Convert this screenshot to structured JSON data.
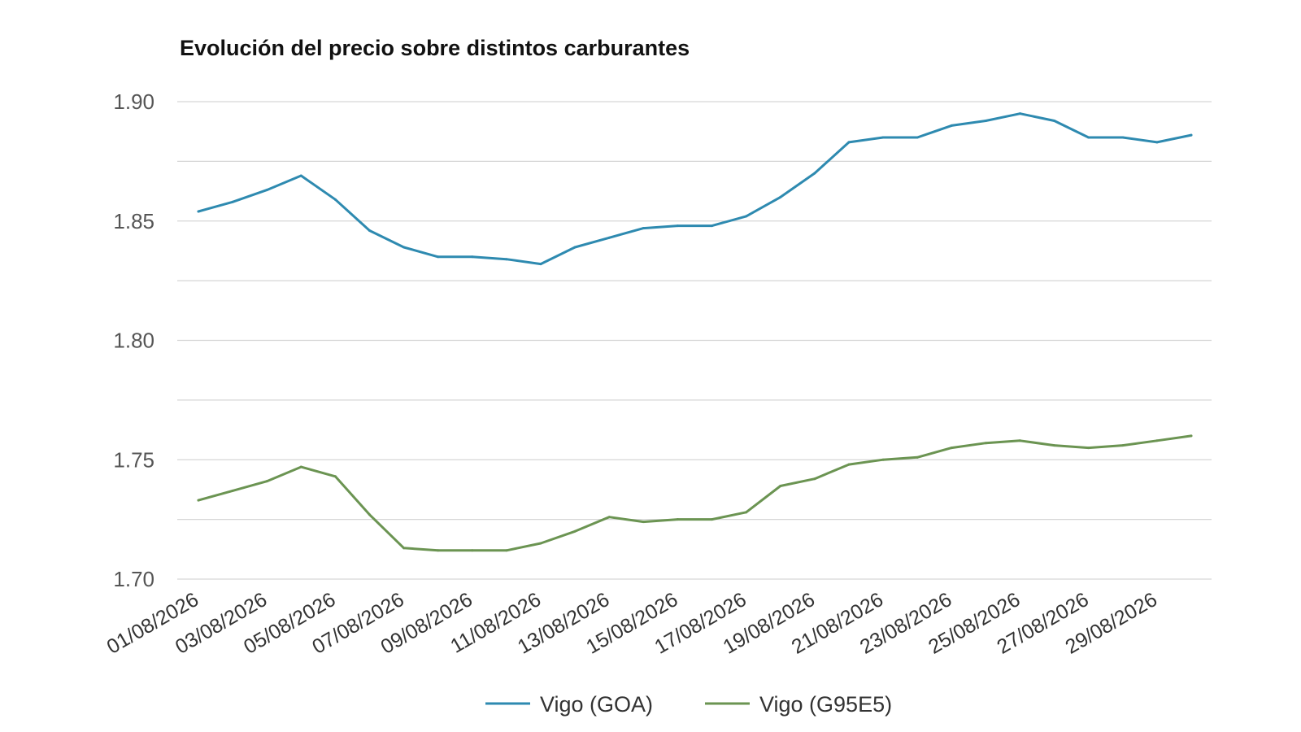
{
  "chart_data": {
    "type": "line",
    "title": "Evolución del precio sobre distintos carburantes",
    "xlabel": "",
    "ylabel": "",
    "x": [
      "01/08/2026",
      "02/08/2026",
      "03/08/2026",
      "04/08/2026",
      "05/08/2026",
      "06/08/2026",
      "07/08/2026",
      "08/08/2026",
      "09/08/2026",
      "10/08/2026",
      "11/08/2026",
      "12/08/2026",
      "13/08/2026",
      "14/08/2026",
      "15/08/2026",
      "16/08/2026",
      "17/08/2026",
      "18/08/2026",
      "19/08/2026",
      "20/08/2026",
      "21/08/2026",
      "22/08/2026",
      "23/08/2026",
      "24/08/2026",
      "25/08/2026",
      "26/08/2026",
      "27/08/2026",
      "28/08/2026",
      "29/08/2026",
      "30/08/2026"
    ],
    "x_tick_labels": [
      "01/08/2026",
      "03/08/2026",
      "05/08/2026",
      "07/08/2026",
      "09/08/2026",
      "11/08/2026",
      "13/08/2026",
      "15/08/2026",
      "17/08/2026",
      "19/08/2026",
      "21/08/2026",
      "23/08/2026",
      "25/08/2026",
      "27/08/2026",
      "29/08/2026"
    ],
    "y_tick_labels": [
      "1.70",
      "1.75",
      "1.80",
      "1.85",
      "1.90"
    ],
    "y_ticks": [
      1.7,
      1.75,
      1.8,
      1.85,
      1.9
    ],
    "ylim": [
      1.7,
      1.9
    ],
    "grid": true,
    "legend_position": "bottom",
    "series": [
      {
        "name": "Vigo (GOA)",
        "color": "#2e8ab0",
        "values": [
          1.854,
          1.858,
          1.863,
          1.869,
          1.859,
          1.846,
          1.839,
          1.835,
          1.835,
          1.834,
          1.832,
          1.839,
          1.843,
          1.847,
          1.848,
          1.848,
          1.852,
          1.86,
          1.87,
          1.883,
          1.885,
          1.885,
          1.89,
          1.892,
          1.895,
          1.892,
          1.885,
          1.885,
          1.883,
          1.886
        ]
      },
      {
        "name": "Vigo (G95E5)",
        "color": "#6b9452",
        "values": [
          1.733,
          1.737,
          1.741,
          1.747,
          1.743,
          1.727,
          1.713,
          1.712,
          1.712,
          1.712,
          1.715,
          1.72,
          1.726,
          1.724,
          1.725,
          1.725,
          1.728,
          1.739,
          1.742,
          1.748,
          1.75,
          1.751,
          1.755,
          1.757,
          1.758,
          1.756,
          1.755,
          1.756,
          1.758,
          1.76
        ]
      }
    ]
  }
}
